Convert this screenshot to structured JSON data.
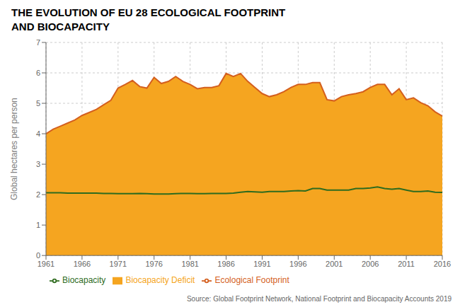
{
  "chart_data": {
    "type": "line",
    "title": "THE EVOLUTION OF EU 28 ECOLOGICAL FOOTPRINT",
    "subtitle": "AND BIOCAPACITY",
    "y_label": "Global hectares per person",
    "annotations": [
      "Source: Global Footprint Network, National Footprint and Biocapacity Accounts 2019"
    ],
    "x": [
      1961,
      1962,
      1963,
      1964,
      1965,
      1966,
      1967,
      1968,
      1969,
      1970,
      1971,
      1972,
      1973,
      1974,
      1975,
      1976,
      1977,
      1978,
      1979,
      1980,
      1981,
      1982,
      1983,
      1984,
      1985,
      1986,
      1987,
      1988,
      1989,
      1990,
      1991,
      1992,
      1993,
      1994,
      1995,
      1996,
      1997,
      1998,
      1999,
      2000,
      2001,
      2002,
      2003,
      2004,
      2005,
      2006,
      2007,
      2008,
      2009,
      2010,
      2011,
      2012,
      2013,
      2014,
      2015,
      2016
    ],
    "series": [
      {
        "name": "Biocapacity Deficit",
        "type": "area",
        "color": "#f5a520",
        "values": [
          4.0,
          4.15,
          4.25,
          4.35,
          4.45,
          4.6,
          4.7,
          4.8,
          4.95,
          5.1,
          5.5,
          5.62,
          5.75,
          5.55,
          5.5,
          5.85,
          5.65,
          5.72,
          5.88,
          5.72,
          5.62,
          5.48,
          5.52,
          5.52,
          5.58,
          5.98,
          5.88,
          5.98,
          5.72,
          5.52,
          5.32,
          5.22,
          5.28,
          5.38,
          5.52,
          5.62,
          5.62,
          5.68,
          5.68,
          5.12,
          5.08,
          5.22,
          5.28,
          5.32,
          5.38,
          5.52,
          5.62,
          5.62,
          5.28,
          5.48,
          5.12,
          5.18,
          5.02,
          4.92,
          4.72,
          4.58
        ]
      },
      {
        "name": "Ecological Footprint",
        "type": "line",
        "color": "#d45f1e",
        "values": [
          4.0,
          4.15,
          4.25,
          4.35,
          4.45,
          4.6,
          4.7,
          4.8,
          4.95,
          5.1,
          5.5,
          5.62,
          5.75,
          5.55,
          5.5,
          5.85,
          5.65,
          5.72,
          5.88,
          5.72,
          5.62,
          5.48,
          5.52,
          5.52,
          5.58,
          5.98,
          5.88,
          5.98,
          5.72,
          5.52,
          5.32,
          5.22,
          5.28,
          5.38,
          5.52,
          5.62,
          5.62,
          5.68,
          5.68,
          5.12,
          5.08,
          5.22,
          5.28,
          5.32,
          5.38,
          5.52,
          5.62,
          5.62,
          5.28,
          5.48,
          5.12,
          5.18,
          5.02,
          4.92,
          4.72,
          4.58
        ]
      },
      {
        "name": "Biocapacity",
        "type": "line",
        "color": "#2e6b1e",
        "values": [
          2.06,
          2.06,
          2.06,
          2.05,
          2.05,
          2.05,
          2.05,
          2.05,
          2.04,
          2.04,
          2.03,
          2.03,
          2.03,
          2.04,
          2.03,
          2.02,
          2.02,
          2.02,
          2.03,
          2.04,
          2.04,
          2.03,
          2.03,
          2.04,
          2.04,
          2.04,
          2.05,
          2.08,
          2.1,
          2.09,
          2.08,
          2.1,
          2.1,
          2.1,
          2.12,
          2.13,
          2.12,
          2.2,
          2.2,
          2.15,
          2.15,
          2.15,
          2.15,
          2.2,
          2.2,
          2.22,
          2.25,
          2.2,
          2.18,
          2.2,
          2.15,
          2.1,
          2.1,
          2.12,
          2.08,
          2.07
        ]
      }
    ],
    "xlim": [
      1961,
      2016
    ],
    "xticks": [
      1961,
      1966,
      1971,
      1976,
      1981,
      1986,
      1991,
      1996,
      2001,
      2006,
      2011,
      2016
    ],
    "ylim": [
      0,
      7
    ],
    "yticks": [
      0,
      1,
      2,
      3,
      4,
      5,
      6,
      7
    ],
    "grid": true,
    "legend": "lower left"
  }
}
